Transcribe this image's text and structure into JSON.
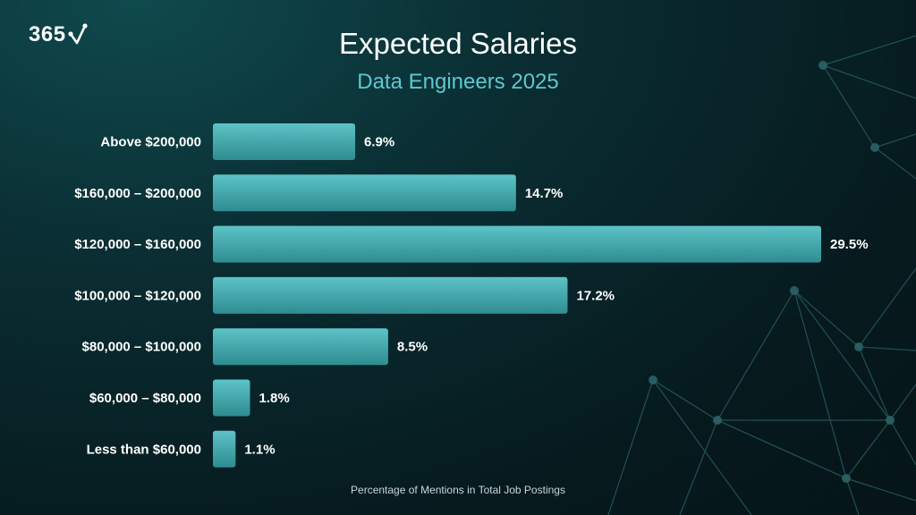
{
  "logo": {
    "text": "365",
    "icon": "check-network-icon"
  },
  "colors": {
    "bar_top": "#5cc3c6",
    "bar_bottom": "#2f8c91",
    "accent": "#5ec8cf"
  },
  "chart_data": {
    "type": "bar",
    "orientation": "horizontal",
    "title": "Expected Salaries",
    "subtitle": "Data Engineers 2025",
    "xlabel": "Percentage of Mentions in Total Job Postings",
    "ylabel": "",
    "categories": [
      "Above $200,000",
      "$160,000 – $200,000",
      "$120,000 – $160,000",
      "$100,000 – $120,000",
      "$80,000 – $100,000",
      "$60,000 – $80,000",
      "Less than $60,000"
    ],
    "values": [
      6.9,
      14.7,
      29.5,
      17.2,
      8.5,
      1.8,
      1.1
    ],
    "value_labels": [
      "6.9%",
      "14.7%",
      "29.5%",
      "17.2%",
      "8.5%",
      "1.8%",
      "1.1%"
    ],
    "xlim": [
      0,
      29.5
    ],
    "grid": false
  }
}
